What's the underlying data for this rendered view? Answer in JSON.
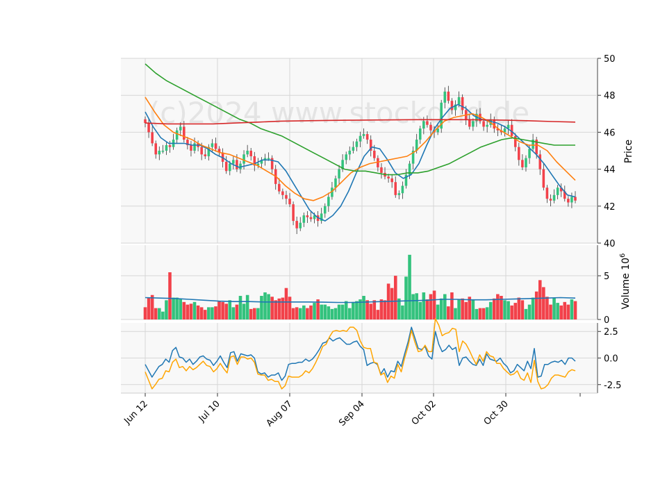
{
  "chart_data": {
    "type": "candlestick",
    "watermark": "(c)2024 www.stockgrid.de",
    "x_tick_labels": [
      "Jun 12",
      "Jul 10",
      "Aug 07",
      "Sep 04",
      "Oct 02",
      "Oct 30"
    ],
    "price_panel": {
      "ylabel": "Price",
      "ylim": [
        40,
        50
      ],
      "y_ticks": [
        "40",
        "42",
        "44",
        "46",
        "48",
        "50"
      ],
      "close_series": [
        46.5,
        46.0,
        45.4,
        44.8,
        45.0,
        45.0,
        45.3,
        45.2,
        45.6,
        46.1,
        46.3,
        45.6,
        45.3,
        45.0,
        45.4,
        45.2,
        44.8,
        44.7,
        45.2,
        45.4,
        45.1,
        44.9,
        44.4,
        43.9,
        44.3,
        44.5,
        44.0,
        44.3,
        44.8,
        45.0,
        44.7,
        44.2,
        44.3,
        44.5,
        44.6,
        44.6,
        44.0,
        43.2,
        42.8,
        42.6,
        42.4,
        42.1,
        41.2,
        40.8,
        41.1,
        41.5,
        41.4,
        41.3,
        41.5,
        41.2,
        41.6,
        42.0,
        42.5,
        43.0,
        43.5,
        44.0,
        44.5,
        44.8,
        45.0,
        45.2,
        45.5,
        45.8,
        45.9,
        45.6,
        45.0,
        44.6,
        44.1,
        43.8,
        43.6,
        43.5,
        43.3,
        42.6,
        42.7,
        43.1,
        43.7,
        44.3,
        45.0,
        45.6,
        46.2,
        46.6,
        46.4,
        46.1,
        46.0,
        46.2,
        47.6,
        48.2,
        47.7,
        47.2,
        47.5,
        47.9,
        47.2,
        46.7,
        46.3,
        46.6,
        47.0,
        46.6,
        46.3,
        46.4,
        46.7,
        46.2,
        46.1,
        46.0,
        46.2,
        46.4,
        45.8,
        45.2,
        44.5,
        44.1,
        44.6,
        45.1,
        45.6,
        44.8,
        44.0,
        43.0,
        42.4,
        42.3,
        42.6,
        43.0,
        42.8,
        42.4,
        42.2,
        42.5,
        42.3
      ],
      "moving_averages": [
        {
          "name": "MA short",
          "color": "#1f77b4",
          "values": [
            47.1,
            46.3,
            45.7,
            45.4,
            45.4,
            45.4,
            45.3,
            45.3,
            45.1,
            44.8,
            44.6,
            44.3,
            44.1,
            44.2,
            44.3,
            44.5,
            44.5,
            44.4,
            43.9,
            43.2,
            42.5,
            41.8,
            41.4,
            41.2,
            41.5,
            42.0,
            42.8,
            43.8,
            44.7,
            45.2,
            45.1,
            44.5,
            43.8,
            43.5,
            43.7,
            44.3,
            45.3,
            46.2,
            46.8,
            47.3,
            47.5,
            47.3,
            46.9,
            46.7,
            46.6,
            46.5,
            46.3,
            46.0,
            45.6,
            45.2,
            44.8,
            44.3,
            43.7,
            43.1,
            42.6,
            42.5
          ]
        },
        {
          "name": "MA medium",
          "color": "#ff7f0e",
          "values": [
            47.9,
            47.1,
            46.4,
            46.0,
            45.8,
            45.6,
            45.3,
            45.1,
            44.9,
            44.8,
            44.6,
            44.4,
            44.2,
            43.9,
            43.6,
            43.1,
            42.7,
            42.4,
            42.3,
            42.5,
            42.8,
            43.3,
            43.8,
            44.1,
            44.3,
            44.4,
            44.5,
            44.6,
            44.7,
            45.0,
            45.5,
            46.1,
            46.6,
            46.8,
            46.9,
            47.0,
            46.8,
            46.5,
            46.1,
            45.8,
            45.5,
            45.3,
            45.3,
            45.0,
            44.4,
            43.9,
            43.4
          ]
        },
        {
          "name": "MA long",
          "color": "#2ca02c",
          "values": [
            49.7,
            49.2,
            48.8,
            48.5,
            48.2,
            47.9,
            47.6,
            47.3,
            47.0,
            46.7,
            46.5,
            46.2,
            46.0,
            45.8,
            45.5,
            45.2,
            44.9,
            44.6,
            44.3,
            44.0,
            43.9,
            43.9,
            43.8,
            43.7,
            43.7,
            43.8,
            43.8,
            43.9,
            44.1,
            44.3,
            44.6,
            44.9,
            45.2,
            45.4,
            45.6,
            45.7,
            45.6,
            45.5,
            45.4,
            45.3,
            45.3,
            45.3
          ]
        },
        {
          "name": "MA very long",
          "color": "#d62728",
          "values": [
            46.5,
            46.45,
            46.45,
            46.45,
            46.5,
            46.55,
            46.6,
            46.62,
            46.64,
            46.65,
            46.66,
            46.67,
            46.68,
            46.68,
            46.68,
            46.67,
            46.65,
            46.62,
            46.58,
            46.55
          ]
        }
      ]
    },
    "volume_panel": {
      "ylabel": "Volume  10^6",
      "ylim": [
        0,
        8.5
      ],
      "y_ticks": [
        "0",
        "5"
      ],
      "values": [
        1.4,
        2.5,
        2.8,
        1.3,
        1.3,
        0.9,
        2.2,
        5.4,
        2.5,
        2.5,
        2.4,
        2.0,
        1.7,
        1.8,
        2.0,
        1.6,
        1.4,
        1.1,
        1.4,
        1.4,
        1.5,
        2.1,
        2.0,
        1.8,
        2.2,
        1.4,
        1.7,
        2.7,
        1.8,
        2.8,
        1.2,
        1.3,
        1.3,
        2.7,
        3.1,
        2.9,
        2.6,
        2.2,
        2.4,
        2.5,
        3.6,
        2.6,
        1.3,
        1.4,
        1.3,
        1.6,
        1.3,
        1.6,
        1.9,
        2.3,
        1.7,
        1.7,
        1.5,
        1.2,
        1.3,
        1.7,
        1.7,
        2.1,
        1.3,
        2.0,
        2.1,
        2.3,
        2.7,
        2.2,
        1.8,
        2.2,
        1.1,
        2.3,
        2.2,
        4.1,
        3.6,
        5.0,
        2.4,
        1.6,
        4.9,
        7.4,
        2.9,
        3.0,
        2.0,
        3.1,
        2.3,
        2.9,
        3.3,
        1.7,
        2.4,
        2.9,
        1.5,
        3.1,
        1.3,
        2.3,
        2.4,
        2.0,
        2.6,
        2.2,
        1.2,
        1.3,
        1.3,
        1.4,
        2.0,
        2.4,
        2.9,
        2.7,
        2.2,
        2.1,
        1.6,
        1.9,
        2.5,
        2.2,
        1.2,
        1.7,
        2.5,
        3.2,
        4.5,
        3.7,
        2.6,
        1.7,
        2.5,
        1.9,
        1.6,
        2.0,
        1.7,
        2.3,
        2.1
      ],
      "average_line": [
        2.5,
        2.45,
        2.4,
        2.3,
        2.2,
        2.1,
        2.05,
        2.05,
        2.0,
        2.0,
        2.0,
        2.0,
        1.98,
        1.95,
        1.95,
        2.0,
        2.05,
        2.1,
        2.15,
        2.2,
        2.3,
        2.3,
        2.25,
        2.25,
        2.3,
        2.35,
        2.4,
        2.45,
        2.5,
        2.45
      ]
    },
    "oscillator_panel": {
      "ylim": [
        -3.3,
        3.3
      ],
      "y_ticks": [
        "2.5",
        "0.0",
        "-2.5"
      ],
      "series": [
        {
          "name": "fast",
          "color": "#1f77b4",
          "values": [
            -0.6,
            -1.2,
            -1.8,
            -1.3,
            -0.8,
            -0.6,
            -0.1,
            -0.4,
            0.7,
            1.0,
            0.1,
            0.0,
            -0.4,
            -0.1,
            -0.6,
            -0.3,
            0.1,
            0.2,
            -0.1,
            -0.2,
            -0.7,
            -0.3,
            0.2,
            -0.4,
            -0.9,
            0.5,
            0.6,
            -0.3,
            0.4,
            0.3,
            0.2,
            0.3,
            0.0,
            -1.3,
            -1.5,
            -1.4,
            -1.8,
            -1.6,
            -1.6,
            -1.4,
            -2.1,
            -1.7,
            -0.6,
            -0.5,
            -0.5,
            -0.4,
            -0.4,
            -0.1,
            -0.3,
            -0.1,
            0.3,
            0.8,
            1.4,
            1.5,
            1.9,
            1.6,
            1.8,
            1.9,
            1.6,
            1.3,
            1.3,
            1.5,
            1.6,
            1.1,
            0.8,
            -0.7,
            -0.5,
            -0.4,
            -0.6,
            -1.5,
            -1.0,
            -1.8,
            -1.2,
            -1.3,
            -0.3,
            -0.8,
            0.4,
            1.5,
            2.9,
            1.9,
            0.9,
            0.8,
            1.1,
            0.2,
            -0.1,
            2.5,
            1.3,
            0.6,
            0.8,
            1.2,
            0.8,
            1.0,
            -0.7,
            0.0,
            0.1,
            -0.3,
            -0.6,
            -0.7,
            -0.1,
            -0.7,
            0.4,
            -0.1,
            -0.2,
            -0.3,
            0.0,
            -0.5,
            -0.8,
            -1.4,
            -1.2,
            -0.6,
            -0.9,
            -1.2,
            -0.3,
            -1.0,
            0.9,
            -1.8,
            -1.7,
            -0.6,
            -0.6,
            -0.4,
            -0.3,
            -0.4,
            -0.2,
            -0.6,
            0.0,
            0.0,
            -0.3
          ]
        },
        {
          "name": "slow",
          "color": "#ffa500",
          "values": [
            -1.3,
            -2.1,
            -2.9,
            -2.5,
            -2.0,
            -1.9,
            -1.2,
            -1.3,
            -0.4,
            -0.1,
            -0.9,
            -0.8,
            -1.2,
            -0.8,
            -1.1,
            -0.9,
            -0.6,
            -0.3,
            -0.7,
            -0.8,
            -1.3,
            -1.0,
            -0.5,
            -1.0,
            -1.4,
            0.1,
            0.2,
            -0.6,
            0.1,
            0.1,
            -0.1,
            0.0,
            -0.4,
            -1.5,
            -1.6,
            -1.6,
            -2.1,
            -2.0,
            -2.2,
            -2.2,
            -2.9,
            -2.6,
            -1.7,
            -1.8,
            -1.8,
            -1.8,
            -1.6,
            -1.2,
            -1.4,
            -1.0,
            -0.4,
            0.3,
            1.1,
            1.3,
            2.0,
            2.5,
            2.6,
            2.5,
            2.6,
            2.5,
            2.9,
            2.9,
            2.6,
            1.6,
            1.0,
            0.9,
            0.9,
            -0.4,
            -0.5,
            -1.6,
            -1.4,
            -2.3,
            -1.7,
            -1.9,
            -0.6,
            -1.3,
            0.0,
            1.1,
            2.6,
            1.5,
            0.6,
            0.7,
            1.2,
            0.6,
            0.6,
            3.7,
            3.1,
            2.1,
            2.3,
            2.4,
            2.8,
            2.7,
            0.6,
            1.6,
            1.3,
            0.7,
            0.0,
            -0.6,
            0.3,
            -0.3,
            0.6,
            0.2,
            0.1,
            -0.5,
            -0.5,
            -1.0,
            -1.3,
            -1.6,
            -1.5,
            -1.2,
            -1.9,
            -2.1,
            -1.4,
            -2.3,
            -0.2,
            -2.2,
            -2.9,
            -2.8,
            -2.5,
            -1.9,
            -1.6,
            -1.6,
            -1.7,
            -1.8,
            -1.3,
            -1.1,
            -1.2
          ]
        }
      ]
    }
  }
}
